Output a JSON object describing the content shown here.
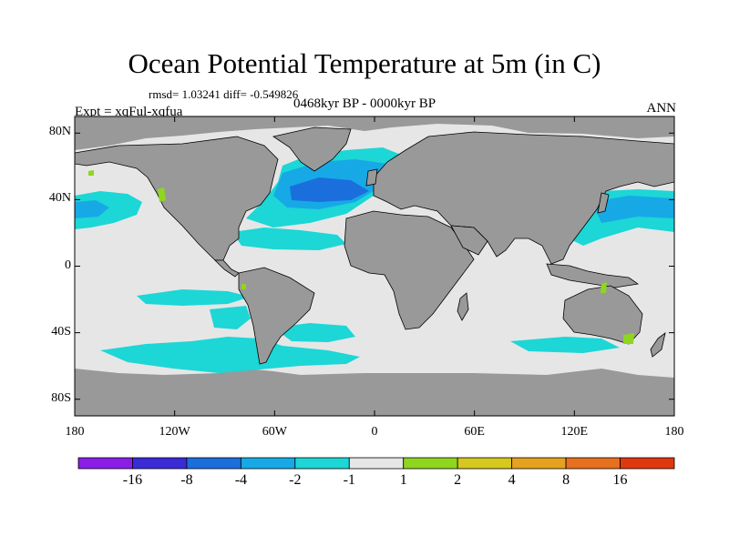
{
  "header": {
    "title": "Ocean Potential Temperature at 5m (in C)",
    "stats": "rmsd= 1.03241 diff= -0.549826",
    "experiment": "Expt = xqFul-xqfua",
    "period": "0468kyr BP - 0000kyr BP",
    "season": "ANN"
  },
  "map": {
    "projection": "cylindrical-equidistant",
    "lon_range": [
      -180,
      180
    ],
    "lat_range": [
      -90,
      90
    ],
    "x_ticks": [
      {
        "lon": -180,
        "label": "180"
      },
      {
        "lon": -120,
        "label": "120W"
      },
      {
        "lon": -60,
        "label": "60W"
      },
      {
        "lon": 0,
        "label": "0"
      },
      {
        "lon": 60,
        "label": "60E"
      },
      {
        "lon": 120,
        "label": "120E"
      },
      {
        "lon": 180,
        "label": "180"
      }
    ],
    "y_ticks": [
      {
        "lat": 80,
        "label": "80N"
      },
      {
        "lat": 40,
        "label": "40N"
      },
      {
        "lat": 0,
        "label": "0"
      },
      {
        "lat": -40,
        "label": "40S"
      },
      {
        "lat": -80,
        "label": "80S"
      }
    ],
    "colors": {
      "land": "#999999",
      "neutral": "#e6e6e6",
      "coast": "#000000"
    }
  },
  "colorbar": {
    "levels": [
      "-16",
      "-8",
      "-4",
      "-2",
      "-1",
      "1",
      "2",
      "4",
      "8",
      "16"
    ],
    "colors": [
      "#8a1ee6",
      "#3a2bd6",
      "#1a6fdd",
      "#16a9e6",
      "#1dd6d6",
      "#e6e6e6",
      "#8fd61e",
      "#d6c81e",
      "#e6a21e",
      "#e6701e",
      "#e0380e"
    ]
  }
}
